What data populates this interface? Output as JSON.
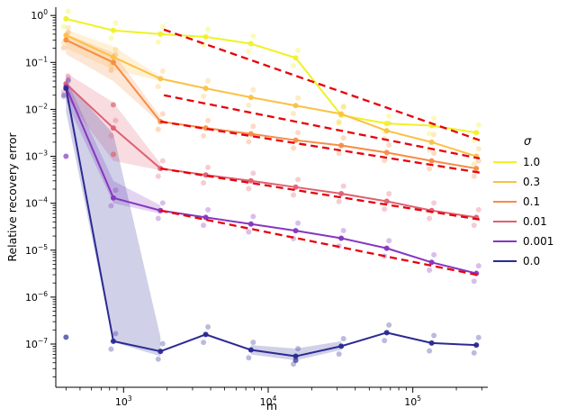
{
  "figure": {
    "xlabel": "m",
    "ylabel": "Relative recovery error",
    "legend_title": "σ",
    "background": "#ffffff"
  },
  "chart_data": {
    "type": "line",
    "x_scale": "log",
    "y_scale": "log",
    "title": "",
    "xlabel": "m",
    "ylabel": "Relative recovery error",
    "legend_position": "right",
    "grid": false,
    "xlim": [
      340,
      330000
    ],
    "ylim": [
      1.2e-08,
      1.5
    ],
    "x_tick_exponents": [
      3,
      4,
      5
    ],
    "y_tick_exponents": [
      0,
      -1,
      -2,
      -3,
      -4,
      -5,
      -6,
      -7
    ],
    "x": [
      400,
      850,
      1800,
      3700,
      7600,
      15500,
      32000,
      66000,
      135000,
      275000
    ],
    "series": [
      {
        "name": "1.0",
        "color": "#f0f126",
        "values": [
          0.85,
          0.48,
          0.4,
          0.35,
          0.25,
          0.125,
          0.0075,
          0.005,
          0.0045,
          0.0032
        ]
      },
      {
        "name": "0.3",
        "color": "#fcc044",
        "values": [
          0.38,
          0.13,
          0.045,
          0.028,
          0.018,
          0.012,
          0.008,
          0.0035,
          0.002,
          0.001
        ]
      },
      {
        "name": "0.1",
        "color": "#f68d45",
        "values": [
          0.3,
          0.1,
          0.0055,
          0.004,
          0.003,
          0.0022,
          0.0017,
          0.0012,
          0.0008,
          0.00055
        ]
      },
      {
        "name": "0.01",
        "color": "#df6172",
        "values": [
          0.035,
          0.004,
          0.00055,
          0.0004,
          0.0003,
          0.00022,
          0.00016,
          0.00011,
          7e-05,
          5e-05
        ]
      },
      {
        "name": "0.001",
        "color": "#8636c0",
        "values": [
          0.03,
          0.00013,
          7e-05,
          5e-05,
          3.6e-05,
          2.6e-05,
          1.8e-05,
          1.1e-05,
          5.5e-06,
          3.2e-06
        ]
      },
      {
        "name": "0.0",
        "color": "#2b2a94",
        "values": [
          0.028,
          1.15e-07,
          7e-08,
          1.6e-07,
          7.5e-08,
          5.5e-08,
          9e-08,
          1.75e-07,
          1.05e-07,
          9.5e-08
        ]
      }
    ],
    "fit_color": "#e8000b",
    "fit_lines": [
      {
        "x": [
          1900,
          290000
        ],
        "y": [
          0.5,
          0.0022
        ]
      },
      {
        "x": [
          1900,
          290000
        ],
        "y": [
          0.02,
          0.0009
        ]
      },
      {
        "x": [
          1800,
          290000
        ],
        "y": [
          0.0055,
          0.00045
        ]
      },
      {
        "x": [
          1800,
          290000
        ],
        "y": [
          0.00055,
          4.5e-05
        ]
      },
      {
        "x": [
          1800,
          290000
        ],
        "y": [
          7e-05,
          2.9e-06
        ]
      }
    ],
    "bands": [
      {
        "series": "0.3",
        "x": [
          400,
          850,
          1800
        ],
        "upper": [
          0.5,
          0.22,
          0.05
        ],
        "lower": [
          0.2,
          0.07,
          0.04
        ]
      },
      {
        "series": "0.1",
        "x": [
          400,
          850,
          1800
        ],
        "upper": [
          0.4,
          0.16,
          0.007
        ],
        "lower": [
          0.15,
          0.04,
          0.005
        ]
      },
      {
        "series": "0.01",
        "x": [
          400,
          850,
          1800
        ],
        "upper": [
          0.06,
          0.014,
          0.0007
        ],
        "lower": [
          0.018,
          0.0008,
          0.0005
        ]
      },
      {
        "series": "0.001",
        "x": [
          400,
          850,
          1800
        ],
        "upper": [
          0.045,
          0.0003,
          9e-05
        ],
        "lower": [
          0.015,
          0.0001,
          6e-05
        ]
      },
      {
        "series": "0.0",
        "x": [
          400,
          850,
          1800
        ],
        "upper": [
          0.04,
          0.003,
          1.4e-07
        ],
        "lower": [
          0.009,
          1.1e-07,
          5.5e-08
        ]
      },
      {
        "series": "0.0",
        "x": [
          7600,
          15500,
          32000
        ],
        "upper": [
          9.5e-08,
          8e-08,
          1.15e-07
        ],
        "lower": [
          6e-08,
          4.5e-08,
          7.5e-08
        ]
      }
    ],
    "scatter_jitter": [
      0.68,
      1.45
    ],
    "outliers": [
      {
        "series": "0.0",
        "x": 400,
        "y": 1.4e-07
      },
      {
        "series": "0.0",
        "x": 15500,
        "y": 4.5e-08
      },
      {
        "series": "0.01",
        "x": 850,
        "y": 0.0125
      },
      {
        "series": "0.01",
        "x": 850,
        "y": 0.0011
      },
      {
        "series": "0.001",
        "x": 400,
        "y": 0.001
      }
    ]
  }
}
